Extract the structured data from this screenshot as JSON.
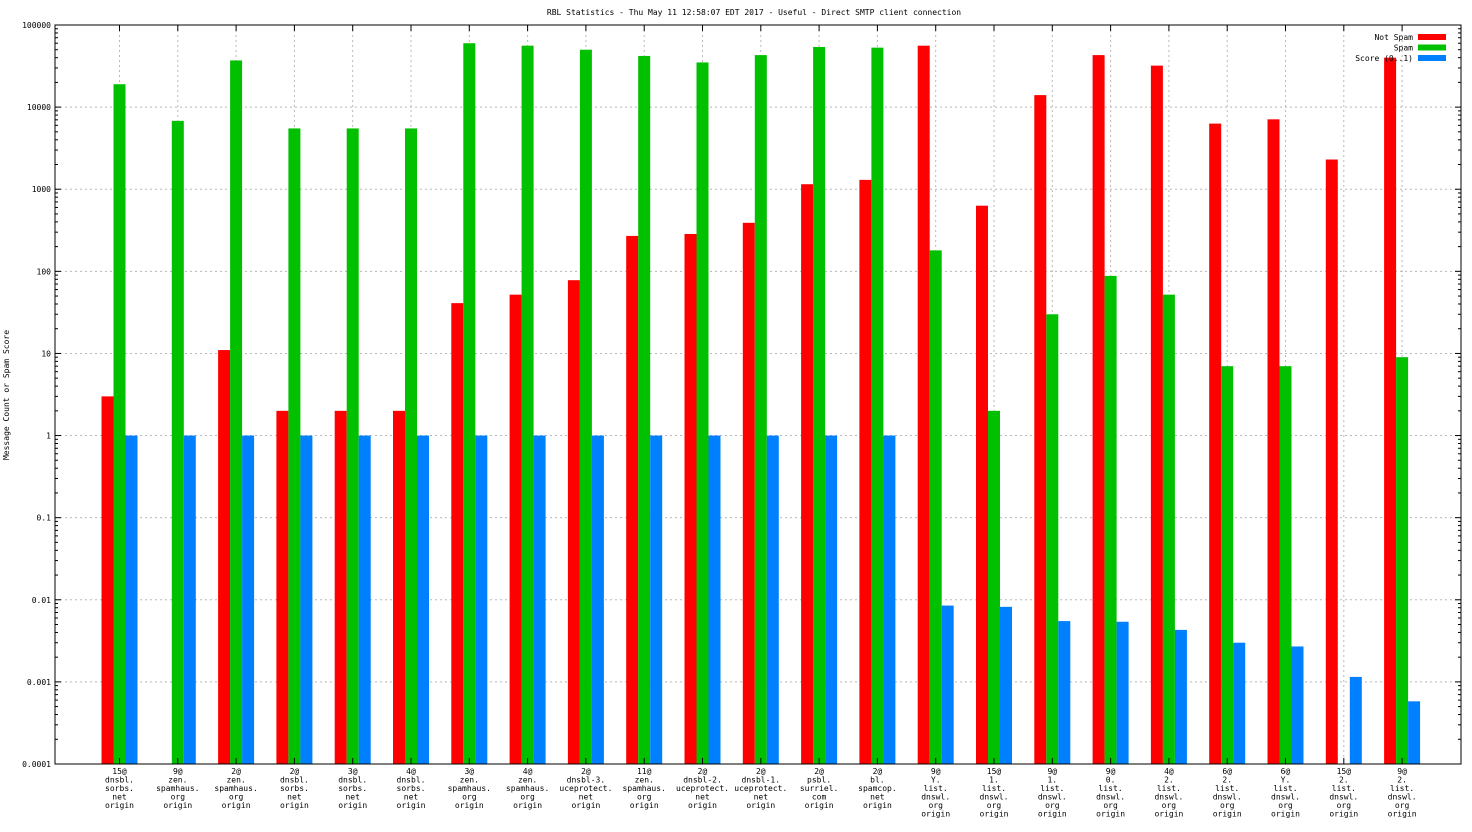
{
  "chart_data": {
    "type": "bar",
    "title": "RBL Statistics - Thu May 11 12:58:07 EDT 2017 - Useful - Direct SMTP client connection",
    "xlabel": "",
    "ylabel": "Message Count or Spam Score",
    "y_scale": "log",
    "ylim": [
      0.0001,
      100000
    ],
    "y_ticks": [
      "0.0001",
      "0.001",
      "0.01",
      "0.1",
      "1",
      "10",
      "100",
      "1000",
      "10000",
      "100000"
    ],
    "grid": true,
    "legend_position": "top-right",
    "categories": [
      [
        "15@",
        "dnsbl.",
        "sorbs.",
        "net",
        "origin"
      ],
      [
        "9@",
        "zen.",
        "spamhaus.",
        "org",
        "origin"
      ],
      [
        "2@",
        "zen.",
        "spamhaus.",
        "org",
        "origin"
      ],
      [
        "2@",
        "dnsbl.",
        "sorbs.",
        "net",
        "origin"
      ],
      [
        "3@",
        "dnsbl.",
        "sorbs.",
        "net",
        "origin"
      ],
      [
        "4@",
        "dnsbl.",
        "sorbs.",
        "net",
        "origin"
      ],
      [
        "3@",
        "zen.",
        "spamhaus.",
        "org",
        "origin"
      ],
      [
        "4@",
        "zen.",
        "spamhaus.",
        "org",
        "origin"
      ],
      [
        "2@",
        "dnsbl-3.",
        "uceprotect.",
        "net",
        "origin"
      ],
      [
        "11@",
        "zen.",
        "spamhaus.",
        "org",
        "origin"
      ],
      [
        "2@",
        "dnsbl-2.",
        "uceprotect.",
        "net",
        "origin"
      ],
      [
        "2@",
        "dnsbl-1.",
        "uceprotect.",
        "net",
        "origin"
      ],
      [
        "2@",
        "psbl.",
        "surriel.",
        "com",
        "origin"
      ],
      [
        "2@",
        "bl.",
        "spamcop.",
        "net",
        "origin"
      ],
      [
        "9@",
        "Y.",
        "list.",
        "dnswl.",
        "org",
        "origin"
      ],
      [
        "15@",
        "1.",
        "list.",
        "dnswl.",
        "org",
        "origin"
      ],
      [
        "9@",
        "1.",
        "list.",
        "dnswl.",
        "org",
        "origin"
      ],
      [
        "9@",
        "0.",
        "list.",
        "dnswl.",
        "org",
        "origin"
      ],
      [
        "4@",
        "2.",
        "list.",
        "dnswl.",
        "org",
        "origin"
      ],
      [
        "6@",
        "2.",
        "list.",
        "dnswl.",
        "org",
        "origin"
      ],
      [
        "6@",
        "Y.",
        "list.",
        "dnswl.",
        "org",
        "origin"
      ],
      [
        "15@",
        "2.",
        "list.",
        "dnswl.",
        "org",
        "origin"
      ],
      [
        "9@",
        "2.",
        "list.",
        "dnswl.",
        "org",
        "origin"
      ]
    ],
    "series": [
      {
        "name": "Not Spam",
        "color": "#ff0000",
        "values": [
          3,
          null,
          11,
          2,
          2,
          2,
          41,
          52,
          78,
          270,
          285,
          390,
          1150,
          1300,
          56000,
          630,
          14000,
          43000,
          32000,
          6300,
          7100,
          2300,
          40000
        ]
      },
      {
        "name": "Spam",
        "color": "#00c000",
        "values": [
          19000,
          6800,
          37000,
          5500,
          5500,
          5500,
          60000,
          56000,
          50000,
          42000,
          35000,
          43000,
          54000,
          53000,
          180,
          2,
          30,
          88,
          52,
          7,
          7,
          null,
          9
        ]
      },
      {
        "name": "Score (0..1)",
        "color": "#0080ff",
        "values": [
          1,
          1,
          1,
          1,
          1,
          1,
          1,
          1,
          1,
          1,
          1,
          1,
          1,
          1,
          0.0085,
          0.0082,
          0.0055,
          0.0054,
          0.0043,
          0.003,
          0.0027,
          0.00115,
          0.00058
        ]
      }
    ]
  }
}
